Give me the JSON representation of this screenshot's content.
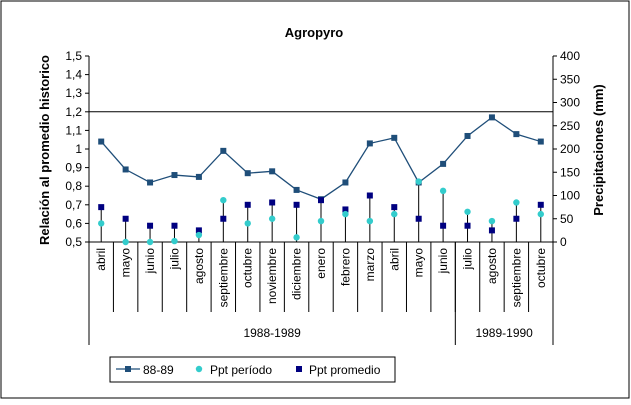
{
  "chart_data": {
    "type": "line",
    "title": "Agropyro",
    "ylabel": "Relación al promedio historico",
    "y2label": "Precipitaciones (mm)",
    "ylim": [
      0.5,
      1.5
    ],
    "y2lim": [
      0,
      400
    ],
    "yticks": [
      "0,5",
      "0,6",
      "0,7",
      "0,8",
      "0,9",
      "1",
      "1,1",
      "1,2",
      "1,3",
      "1,4",
      "1,5"
    ],
    "y2ticks": [
      "0",
      "50",
      "100",
      "150",
      "200",
      "250",
      "300",
      "350",
      "400"
    ],
    "reference_line": 1.2,
    "categories": [
      "abril",
      "mayo",
      "junio",
      "julio",
      "agosto",
      "septiembre",
      "octubre",
      "noviembre",
      "diciembre",
      "enero",
      "febrero",
      "marzo",
      "abril",
      "mayo",
      "junio",
      "julio",
      "agosto",
      "septiembre",
      "octubre"
    ],
    "groups": [
      {
        "label": "1988-1989",
        "start": 0,
        "end": 14
      },
      {
        "label": "1989-1990",
        "start": 15,
        "end": 18
      }
    ],
    "series": [
      {
        "name": "88-89",
        "axis": "left",
        "kind": "line-marker",
        "color": "#1f4e79",
        "values": [
          1.04,
          0.89,
          0.82,
          0.86,
          0.85,
          0.99,
          0.87,
          0.88,
          0.78,
          0.73,
          0.82,
          1.03,
          1.06,
          0.82,
          0.92,
          1.07,
          1.17,
          1.08,
          1.04
        ]
      },
      {
        "name": "Ppt período",
        "axis": "right",
        "kind": "dot",
        "color": "#33cccc",
        "values": [
          40,
          0,
          0,
          2,
          15,
          90,
          40,
          50,
          10,
          45,
          60,
          45,
          60,
          130,
          110,
          65,
          45,
          85,
          60
        ]
      },
      {
        "name": "Ppt promedio",
        "axis": "right",
        "kind": "square",
        "color": "#000080",
        "values": [
          75,
          50,
          35,
          35,
          25,
          50,
          80,
          85,
          80,
          90,
          70,
          100,
          75,
          50,
          35,
          35,
          25,
          50,
          80
        ]
      }
    ],
    "legend_position": "bottom-center",
    "grid": false
  }
}
